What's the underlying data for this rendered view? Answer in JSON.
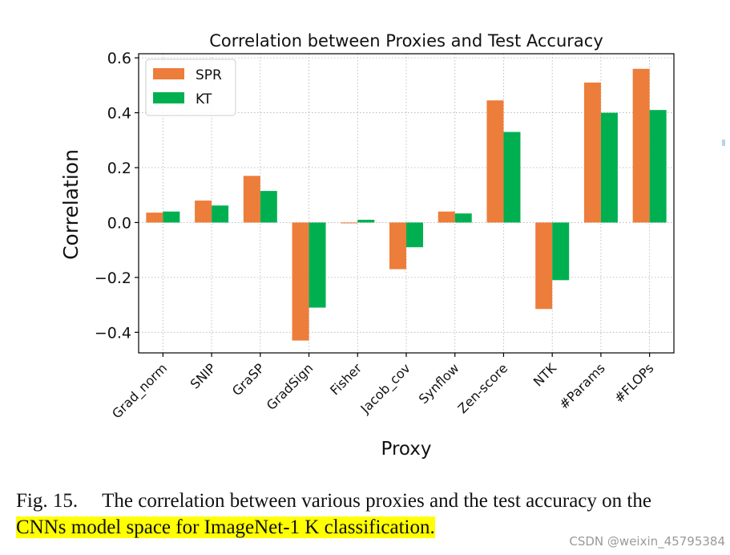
{
  "chart_data": {
    "type": "bar",
    "title": "Correlation between Proxies and Test Accuracy",
    "xlabel": "Proxy",
    "ylabel": "Correlation",
    "ylim": [
      -0.475,
      0.615
    ],
    "yticks": [
      -0.4,
      -0.2,
      0.0,
      0.2,
      0.4,
      0.6
    ],
    "ytick_labels": [
      "−0.4",
      "−0.2",
      "0.0",
      "0.2",
      "0.4",
      "0.6"
    ],
    "grid": true,
    "legend_position": "top-left",
    "categories": [
      "Grad_norm",
      "SNIP",
      "GraSP",
      "GradSign",
      "Fisher",
      "Jacob_cov",
      "Synflow",
      "Zen-score",
      "NTK",
      "#Params",
      "#FLOPs"
    ],
    "series": [
      {
        "name": "SPR",
        "color": "#ed7d3a",
        "values": [
          0.036,
          0.08,
          0.17,
          -0.43,
          -0.003,
          -0.17,
          0.04,
          0.445,
          -0.315,
          0.51,
          0.56
        ]
      },
      {
        "name": "KT",
        "color": "#00b050",
        "values": [
          0.04,
          0.062,
          0.115,
          -0.31,
          0.01,
          -0.09,
          0.033,
          0.33,
          -0.21,
          0.4,
          0.41
        ]
      }
    ]
  },
  "caption": {
    "label": "Fig. 15.",
    "text_line1": "The correlation between various proxies and the test accuracy on the",
    "text_line2": "CNNs model space for ImageNet-1 K classification."
  },
  "watermark": "CSDN @weixin_45795384"
}
